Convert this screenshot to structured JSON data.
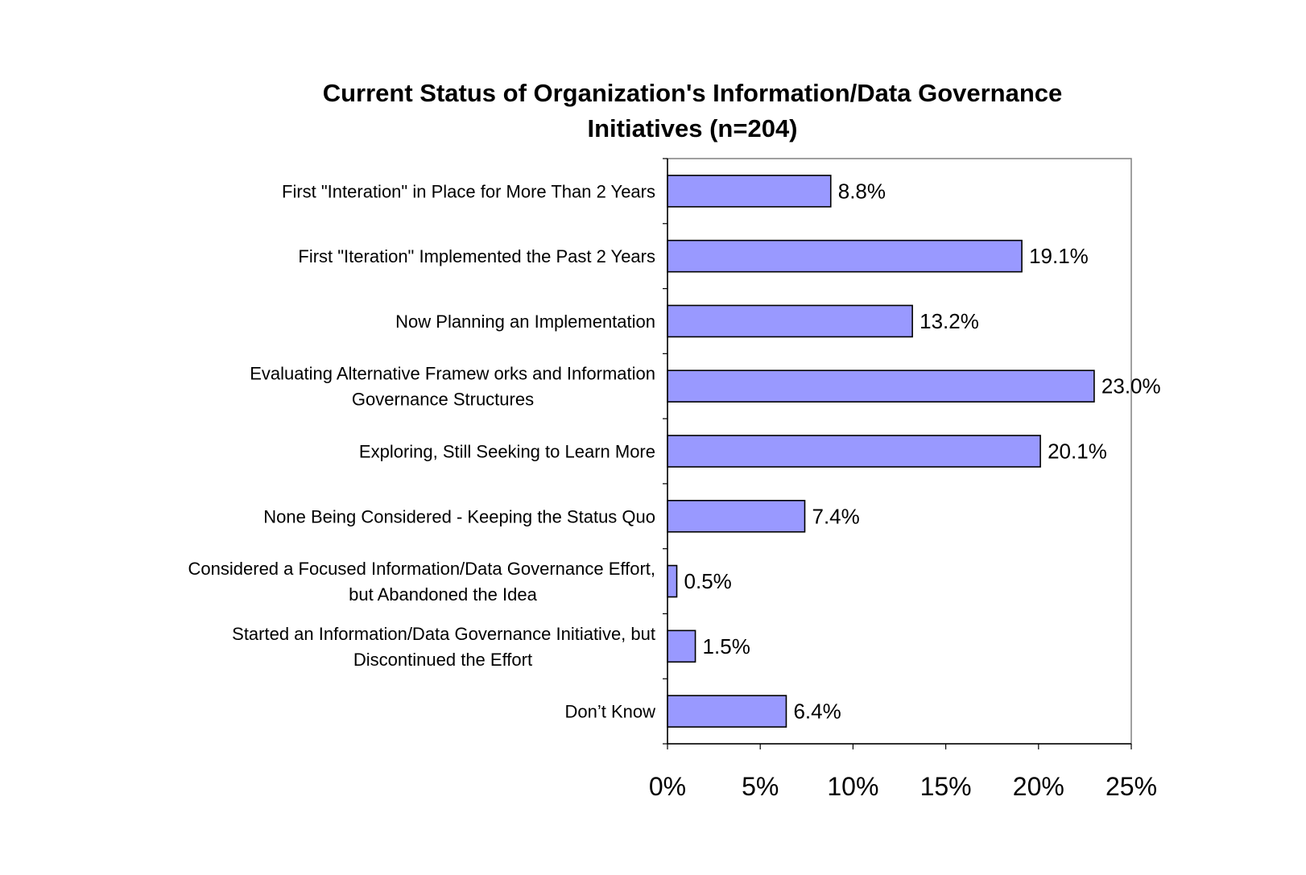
{
  "chart_data": {
    "type": "bar",
    "orientation": "horizontal",
    "title_lines": [
      "Current Status of Organization's Information/Data Governance",
      "Initiatives (n=204)"
    ],
    "categories": [
      [
        "First \"Interation\" in Place for More Than 2 Years"
      ],
      [
        "First \"Iteration\" Implemented the Past 2 Years"
      ],
      [
        "Now  Planning an Implementation"
      ],
      [
        "Evaluating Alternative Framew orks and Information",
        "Governance Structures"
      ],
      [
        "Exploring, Still Seeking to  Learn More"
      ],
      [
        "None Being Considered - Keeping the Status Quo"
      ],
      [
        "Considered a Focused Information/Data Governance Effort,",
        "but Abandoned the Idea"
      ],
      [
        "Started an Information/Data Governance Initiative, but",
        "Discontinued the Effort"
      ],
      [
        "Don’t Know"
      ]
    ],
    "values": [
      8.8,
      19.1,
      13.2,
      23.0,
      20.1,
      7.4,
      0.5,
      1.5,
      6.4
    ],
    "value_labels": [
      "8.8%",
      "19.1%",
      "13.2%",
      "23.0%",
      "20.1%",
      "7.4%",
      "0.5%",
      "1.5%",
      "6.4%"
    ],
    "xlim": [
      0,
      25
    ],
    "x_ticks": [
      0,
      5,
      10,
      15,
      20,
      25
    ],
    "x_tick_labels": [
      "0%",
      "5%",
      "10%",
      "15%",
      "20%",
      "25%"
    ],
    "grid": false,
    "legend": "none",
    "bar_color": "#9999ff",
    "bar_edge_color": "#000000"
  }
}
